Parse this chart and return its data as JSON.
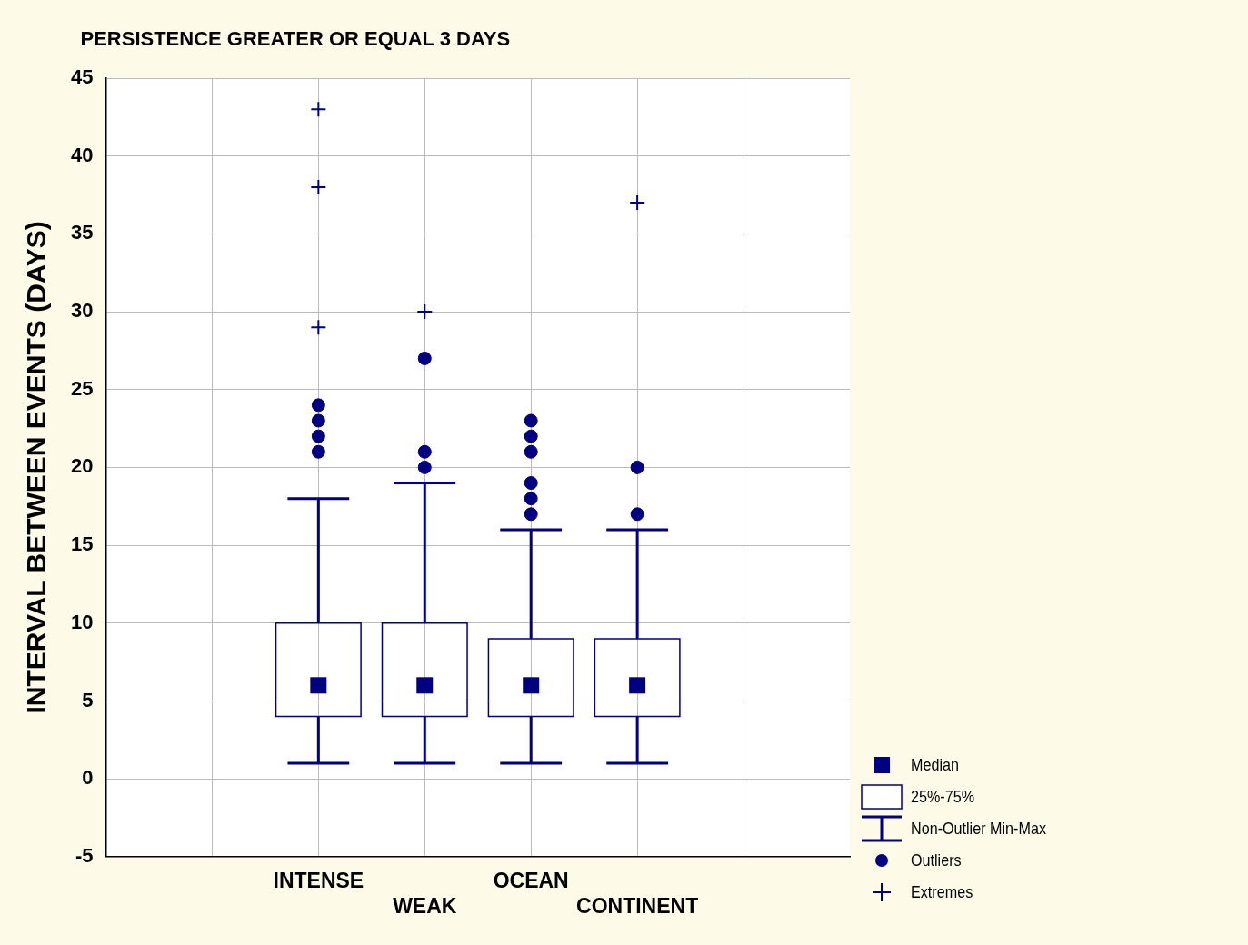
{
  "chart_data": {
    "type": "box",
    "title": "PERSISTENCE GREATER OR EQUAL 3 DAYS",
    "ylabel": "INTERVAL BETWEEN EVENTS (DAYS)",
    "categories": [
      null,
      "INTENSE",
      "WEAK",
      "OCEAN",
      "CONTINENT",
      null
    ],
    "ylim": [
      -5,
      45
    ],
    "yticks": [
      -5,
      0,
      5,
      10,
      15,
      20,
      25,
      30,
      35,
      40,
      45
    ],
    "grid": true,
    "legend": "bottom right",
    "annotations": [
      "Median",
      "25%-75%",
      "Non-Outlier Min-Max",
      "Outliers"
    ],
    "series": [
      {
        "type": "box",
        "color": "#000080",
        "boxes": [
          null,
          {
            "low": 1,
            "q1": 4,
            "median": 6,
            "q3": 10,
            "high": 18,
            "outliers": [
              21,
              22,
              23,
              24
            ]
          },
          {
            "low": 1,
            "q1": 4,
            "median": 6,
            "q3": 10,
            "high": 19,
            "outliers": [
              20,
              21,
              27
            ]
          },
          {
            "low": 1,
            "q1": 4,
            "median": 6,
            "q3": 9,
            "high": 16,
            "outliers": [
              17,
              18,
              19,
              21,
              22,
              23
            ]
          },
          {
            "low": 1,
            "q1": 4,
            "median": 6,
            "q3": 9,
            "high": 16,
            "outliers": [
              17,
              20
            ]
          },
          null
        ]
      },
      {
        "type": "scatter",
        "name": "Extremes",
        "color": "#000080",
        "marker": "cross",
        "x": [
          "INTENSE",
          "INTENSE",
          "INTENSE",
          "WEAK",
          "CONTINENT"
        ],
        "values": [
          29,
          38,
          43,
          30,
          37
        ]
      }
    ]
  }
}
